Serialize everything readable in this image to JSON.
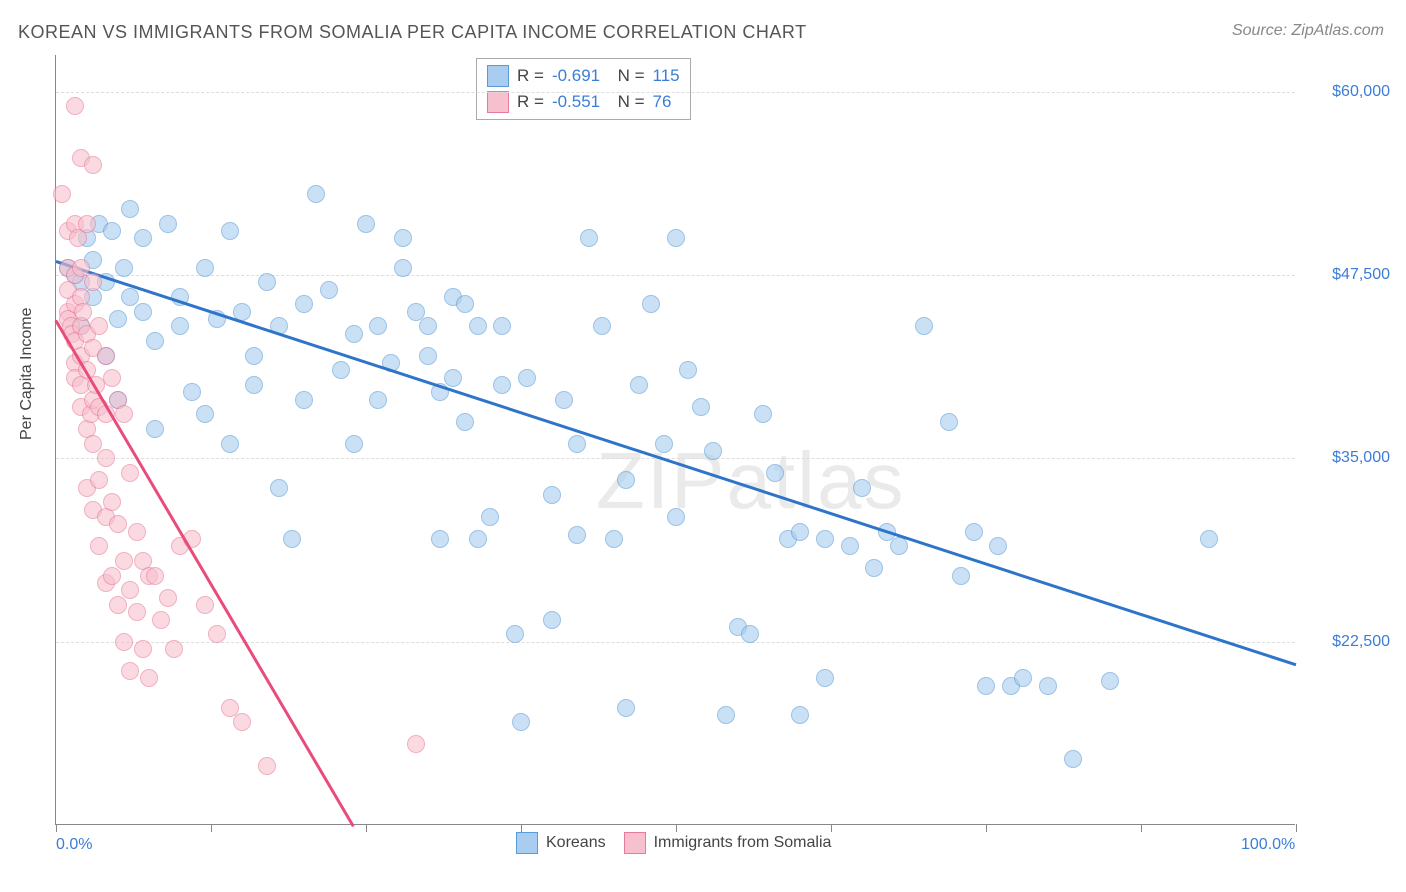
{
  "title": "KOREAN VS IMMIGRANTS FROM SOMALIA PER CAPITA INCOME CORRELATION CHART",
  "source": "Source: ZipAtlas.com",
  "watermark": "ZIPatlas",
  "y_axis_title": "Per Capita Income",
  "chart": {
    "type": "scatter",
    "xlim": [
      0,
      100
    ],
    "ylim": [
      10000,
      62500
    ],
    "x_tick_positions": [
      0,
      12.5,
      25,
      37.5,
      50,
      62.5,
      75,
      87.5,
      100
    ],
    "x_labels": {
      "0": "0.0%",
      "100": "100.0%"
    },
    "y_ticks": [
      22500,
      35000,
      47500,
      60000
    ],
    "y_labels": {
      "22500": "$22,500",
      "35000": "$35,000",
      "47500": "$47,500",
      "60000": "$60,000"
    },
    "background_color": "#ffffff",
    "grid_color": "#dddddd",
    "axis_color": "#888888",
    "label_color": "#3b7dd8",
    "series": [
      {
        "name": "Koreans",
        "color_fill": "#a8cdf0",
        "color_stroke": "#5a9bd5",
        "line_color": "#2e75c9",
        "R": "-0.691",
        "N": "115",
        "regression": {
          "x1": 0,
          "y1": 48500,
          "x2": 100,
          "y2": 21000
        },
        "points": [
          [
            1,
            48000
          ],
          [
            1.5,
            47500
          ],
          [
            2,
            47000
          ],
          [
            2,
            44000
          ],
          [
            2.5,
            50000
          ],
          [
            3,
            48500
          ],
          [
            3,
            46000
          ],
          [
            3.5,
            51000
          ],
          [
            4,
            47000
          ],
          [
            4,
            42000
          ],
          [
            4.5,
            50500
          ],
          [
            5,
            44500
          ],
          [
            5,
            39000
          ],
          [
            5.5,
            48000
          ],
          [
            6,
            52000
          ],
          [
            6,
            46000
          ],
          [
            7,
            50000
          ],
          [
            7,
            45000
          ],
          [
            8,
            43000
          ],
          [
            8,
            37000
          ],
          [
            9,
            51000
          ],
          [
            10,
            46000
          ],
          [
            10,
            44000
          ],
          [
            11,
            39500
          ],
          [
            12,
            48000
          ],
          [
            12,
            38000
          ],
          [
            13,
            44500
          ],
          [
            14,
            50500
          ],
          [
            14,
            36000
          ],
          [
            15,
            45000
          ],
          [
            16,
            42000
          ],
          [
            16,
            40000
          ],
          [
            17,
            47000
          ],
          [
            18,
            44000
          ],
          [
            18,
            33000
          ],
          [
            19,
            29500
          ],
          [
            20,
            45500
          ],
          [
            20,
            39000
          ],
          [
            21,
            53000
          ],
          [
            22,
            46500
          ],
          [
            23,
            41000
          ],
          [
            24,
            43500
          ],
          [
            24,
            36000
          ],
          [
            25,
            51000
          ],
          [
            26,
            39000
          ],
          [
            26,
            44000
          ],
          [
            27,
            41500
          ],
          [
            28,
            48000
          ],
          [
            28,
            50000
          ],
          [
            29,
            45000
          ],
          [
            30,
            44000
          ],
          [
            30,
            42000
          ],
          [
            31,
            39500
          ],
          [
            31,
            29500
          ],
          [
            32,
            46000
          ],
          [
            32,
            40500
          ],
          [
            33,
            45500
          ],
          [
            33,
            37500
          ],
          [
            34,
            44000
          ],
          [
            34,
            29500
          ],
          [
            35,
            31000
          ],
          [
            36,
            44000
          ],
          [
            36,
            40000
          ],
          [
            37,
            23000
          ],
          [
            37.5,
            17000
          ],
          [
            38,
            40500
          ],
          [
            40,
            32500
          ],
          [
            40,
            24000
          ],
          [
            41,
            39000
          ],
          [
            42,
            36000
          ],
          [
            42,
            29800
          ],
          [
            43,
            50000
          ],
          [
            44,
            44000
          ],
          [
            45,
            29500
          ],
          [
            46,
            33500
          ],
          [
            46,
            18000
          ],
          [
            47,
            40000
          ],
          [
            48,
            45500
          ],
          [
            49,
            36000
          ],
          [
            50,
            50000
          ],
          [
            50,
            31000
          ],
          [
            51,
            41000
          ],
          [
            52,
            38500
          ],
          [
            53,
            35500
          ],
          [
            54,
            17500
          ],
          [
            55,
            23500
          ],
          [
            56,
            23000
          ],
          [
            57,
            38000
          ],
          [
            58,
            34000
          ],
          [
            59,
            29500
          ],
          [
            60,
            30000
          ],
          [
            60,
            17500
          ],
          [
            62,
            20000
          ],
          [
            62,
            29500
          ],
          [
            64,
            29000
          ],
          [
            65,
            33000
          ],
          [
            66,
            27500
          ],
          [
            67,
            30000
          ],
          [
            68,
            29000
          ],
          [
            70,
            44000
          ],
          [
            72,
            37500
          ],
          [
            73,
            27000
          ],
          [
            74,
            30000
          ],
          [
            75,
            19500
          ],
          [
            76,
            29000
          ],
          [
            77,
            19500
          ],
          [
            78,
            20000
          ],
          [
            80,
            19500
          ],
          [
            82,
            14500
          ],
          [
            85,
            19800
          ],
          [
            93,
            29500
          ]
        ]
      },
      {
        "name": "Immigrants from Somalia",
        "color_fill": "#f7c0ce",
        "color_stroke": "#e87b9a",
        "line_color": "#e94b7a",
        "R": "-0.551",
        "N": "76",
        "regression": {
          "x1": 0,
          "y1": 44500,
          "x2": 24,
          "y2": 10000
        },
        "points": [
          [
            0.5,
            53000
          ],
          [
            1,
            50500
          ],
          [
            1,
            48000
          ],
          [
            1,
            46500
          ],
          [
            1,
            45000
          ],
          [
            1,
            44500
          ],
          [
            1.2,
            44000
          ],
          [
            1.3,
            43500
          ],
          [
            1.5,
            59000
          ],
          [
            1.5,
            51000
          ],
          [
            1.5,
            47500
          ],
          [
            1.5,
            45500
          ],
          [
            1.5,
            43000
          ],
          [
            1.5,
            41500
          ],
          [
            1.5,
            40500
          ],
          [
            1.8,
            50000
          ],
          [
            2,
            55500
          ],
          [
            2,
            48000
          ],
          [
            2,
            46000
          ],
          [
            2,
            44000
          ],
          [
            2,
            42000
          ],
          [
            2,
            40000
          ],
          [
            2,
            38500
          ],
          [
            2.2,
            45000
          ],
          [
            2.5,
            51000
          ],
          [
            2.5,
            43500
          ],
          [
            2.5,
            41000
          ],
          [
            2.5,
            37000
          ],
          [
            2.5,
            33000
          ],
          [
            2.8,
            38000
          ],
          [
            3,
            55000
          ],
          [
            3,
            47000
          ],
          [
            3,
            42500
          ],
          [
            3,
            39000
          ],
          [
            3,
            36000
          ],
          [
            3,
            31500
          ],
          [
            3.2,
            40000
          ],
          [
            3.5,
            44000
          ],
          [
            3.5,
            38500
          ],
          [
            3.5,
            33500
          ],
          [
            3.5,
            29000
          ],
          [
            4,
            42000
          ],
          [
            4,
            38000
          ],
          [
            4,
            35000
          ],
          [
            4,
            31000
          ],
          [
            4,
            26500
          ],
          [
            4.5,
            40500
          ],
          [
            4.5,
            32000
          ],
          [
            4.5,
            27000
          ],
          [
            5,
            39000
          ],
          [
            5,
            30500
          ],
          [
            5,
            25000
          ],
          [
            5.5,
            38000
          ],
          [
            5.5,
            28000
          ],
          [
            5.5,
            22500
          ],
          [
            6,
            34000
          ],
          [
            6,
            26000
          ],
          [
            6,
            20500
          ],
          [
            6.5,
            30000
          ],
          [
            6.5,
            24500
          ],
          [
            7,
            28000
          ],
          [
            7,
            22000
          ],
          [
            7.5,
            27000
          ],
          [
            7.5,
            20000
          ],
          [
            8,
            27000
          ],
          [
            8.5,
            24000
          ],
          [
            9,
            25500
          ],
          [
            9.5,
            22000
          ],
          [
            10,
            29000
          ],
          [
            11,
            29500
          ],
          [
            12,
            25000
          ],
          [
            13,
            23000
          ],
          [
            14,
            18000
          ],
          [
            15,
            17000
          ],
          [
            17,
            14000
          ],
          [
            29,
            15500
          ]
        ]
      }
    ]
  },
  "legend_bottom": [
    {
      "label": "Koreans",
      "fill": "#a8cdf0",
      "stroke": "#5a9bd5"
    },
    {
      "label": "Immigrants from Somalia",
      "fill": "#f7c0ce",
      "stroke": "#e87b9a"
    }
  ]
}
